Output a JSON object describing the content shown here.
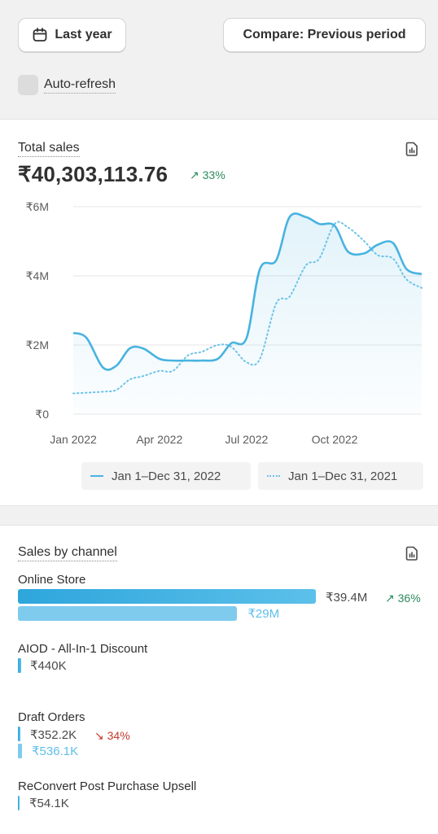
{
  "toolbar": {
    "date_label": "Last year",
    "compare_label": "Compare: Previous period",
    "autorefresh_label": "Auto-refresh"
  },
  "total_sales": {
    "title": "Total sales",
    "value": "₹40,303,113.76",
    "delta": "↗ 33%",
    "legend_current": "Jan 1–Dec 31, 2022",
    "legend_previous": "Jan 1–Dec 31, 2021"
  },
  "chart_data": {
    "type": "area",
    "title": "Total sales",
    "xlabel": "",
    "ylabel": "",
    "x_ticks": [
      "Jan 2022",
      "Apr 2022",
      "Jul 2022",
      "Oct 2022"
    ],
    "y_ticks": [
      "₹0",
      "₹2M",
      "₹4M",
      "₹6M"
    ],
    "ylim": [
      0,
      6000000
    ],
    "x": [
      "2022-01-01",
      "2022-01-15",
      "2022-02-01",
      "2022-02-15",
      "2022-03-01",
      "2022-03-15",
      "2022-04-01",
      "2022-04-15",
      "2022-05-01",
      "2022-05-15",
      "2022-06-01",
      "2022-06-15",
      "2022-07-01",
      "2022-07-15",
      "2022-08-01",
      "2022-08-15",
      "2022-09-01",
      "2022-09-15",
      "2022-10-01",
      "2022-10-15",
      "2022-11-01",
      "2022-11-15",
      "2022-12-01",
      "2022-12-15",
      "2022-12-31"
    ],
    "grid": true,
    "series": [
      {
        "name": "Jan 1–Dec 31, 2022",
        "style": "solid",
        "color": "#48b3e0",
        "values": [
          2350000,
          2200000,
          1350000,
          1400000,
          1900000,
          1900000,
          1600000,
          1550000,
          1550000,
          1550000,
          1600000,
          2050000,
          2200000,
          4200000,
          4450000,
          5700000,
          5700000,
          5500000,
          5450000,
          4700000,
          4650000,
          4900000,
          4950000,
          4200000,
          4050000
        ]
      },
      {
        "name": "Jan 1–Dec 31, 2021",
        "style": "dotted",
        "color": "#6ec3e8",
        "values": [
          600000,
          620000,
          650000,
          700000,
          1000000,
          1100000,
          1250000,
          1250000,
          1700000,
          1800000,
          2000000,
          1950000,
          1500000,
          1600000,
          3200000,
          3400000,
          4300000,
          4500000,
          5500000,
          5400000,
          5000000,
          4600000,
          4500000,
          3900000,
          3650000
        ]
      }
    ]
  },
  "sales_by_channel": {
    "title": "Sales by channel",
    "channels": [
      {
        "name": "Online Store",
        "current": "₹39.4M",
        "previous": "₹29M",
        "delta": "↗ 36%",
        "current_value": 39.4,
        "previous_value": 29.0
      },
      {
        "name": "AIOD - All-In-1 Discount",
        "current": "₹440K",
        "current_value": 0.44
      },
      {
        "name": "Draft Orders",
        "current": "₹352.2K",
        "previous": "₹536.1K",
        "delta": "↘ 34%",
        "current_value": 0.3522,
        "previous_value": 0.5361
      },
      {
        "name": "ReConvert Post Purchase Upsell",
        "current": "₹54.1K",
        "current_value": 0.0541
      }
    ]
  },
  "colors": {
    "current_series": "#48b3e0",
    "previous_series": "#6ec3e8",
    "positive": "#2b8a5b",
    "negative": "#c6392e"
  }
}
